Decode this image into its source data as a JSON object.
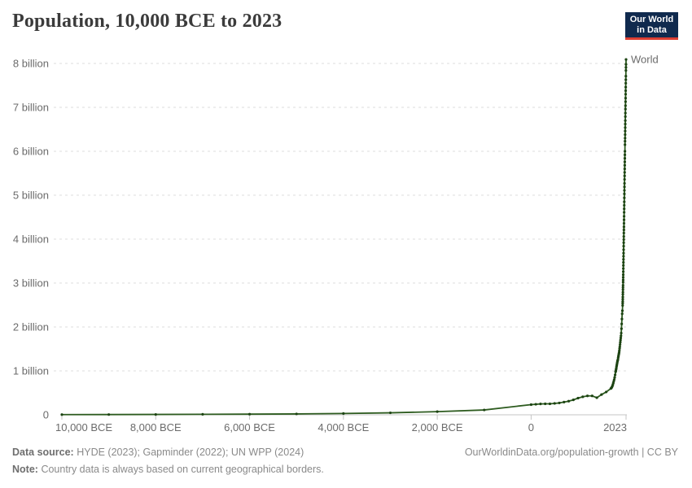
{
  "header": {
    "title": "Population, 10,000 BCE to 2023",
    "logo": {
      "line1": "Our World",
      "line2": "in Data"
    }
  },
  "footer": {
    "data_source_label": "Data source:",
    "data_source_text": "HYDE (2023); Gapminder (2022); UN WPP (2024)",
    "note_label": "Note:",
    "note_text": "Country data is always based on current geographical borders.",
    "credit": "OurWorldinData.org/population-growth | CC BY"
  },
  "colors": {
    "line": "#2e5c20",
    "marker": "#1c4312",
    "series_label": "#1c4312",
    "grid": "#dcdcdc",
    "axis": "#c4c4c4",
    "tick_text": "#6b6b6b",
    "logo_bg": "#102a4e",
    "logo_accent": "#dc3e32",
    "title_text": "#3b3b3b"
  },
  "chart_data": {
    "type": "line",
    "title": "Population, 10,000 BCE to 2023",
    "xlabel": "",
    "ylabel": "",
    "xlim": [
      -10000,
      2023
    ],
    "ylim": [
      0,
      8
    ],
    "grid": "horizontal-dashed",
    "legend_position": "end-of-line",
    "x_ticks": [
      {
        "value": -10000,
        "label": "10,000 BCE"
      },
      {
        "value": -8000,
        "label": "8,000 BCE"
      },
      {
        "value": -6000,
        "label": "6,000 BCE"
      },
      {
        "value": -4000,
        "label": "4,000 BCE"
      },
      {
        "value": -2000,
        "label": "2,000 BCE"
      },
      {
        "value": 0,
        "label": "0"
      },
      {
        "value": 2023,
        "label": "2023"
      }
    ],
    "y_ticks": [
      {
        "value": 0,
        "label": "0"
      },
      {
        "value": 1,
        "label": "1 billion"
      },
      {
        "value": 2,
        "label": "2 billion"
      },
      {
        "value": 3,
        "label": "3 billion"
      },
      {
        "value": 4,
        "label": "4 billion"
      },
      {
        "value": 5,
        "label": "5 billion"
      },
      {
        "value": 6,
        "label": "6 billion"
      },
      {
        "value": 7,
        "label": "7 billion"
      },
      {
        "value": 8,
        "label": "8 billion"
      }
    ],
    "unit": "billion people",
    "series": [
      {
        "name": "World",
        "points": [
          [
            -10000,
            0.004
          ],
          [
            -9000,
            0.006
          ],
          [
            -8000,
            0.008
          ],
          [
            -7000,
            0.011
          ],
          [
            -6000,
            0.015
          ],
          [
            -5000,
            0.02
          ],
          [
            -4000,
            0.03
          ],
          [
            -3000,
            0.045
          ],
          [
            -2000,
            0.072
          ],
          [
            -1000,
            0.11
          ],
          [
            0,
            0.232
          ],
          [
            100,
            0.24
          ],
          [
            200,
            0.248
          ],
          [
            300,
            0.25
          ],
          [
            400,
            0.25
          ],
          [
            500,
            0.26
          ],
          [
            600,
            0.27
          ],
          [
            700,
            0.29
          ],
          [
            800,
            0.31
          ],
          [
            900,
            0.34
          ],
          [
            1000,
            0.38
          ],
          [
            1100,
            0.41
          ],
          [
            1200,
            0.43
          ],
          [
            1300,
            0.43
          ],
          [
            1400,
            0.39
          ],
          [
            1500,
            0.46
          ],
          [
            1600,
            0.52
          ],
          [
            1700,
            0.6
          ],
          [
            1710,
            0.61
          ],
          [
            1720,
            0.63
          ],
          [
            1730,
            0.65
          ],
          [
            1740,
            0.68
          ],
          [
            1750,
            0.72
          ],
          [
            1760,
            0.76
          ],
          [
            1770,
            0.8
          ],
          [
            1780,
            0.85
          ],
          [
            1790,
            0.91
          ],
          [
            1800,
            0.98
          ],
          [
            1805,
            1.0
          ],
          [
            1810,
            1.03
          ],
          [
            1815,
            1.06
          ],
          [
            1820,
            1.1
          ],
          [
            1825,
            1.13
          ],
          [
            1830,
            1.16
          ],
          [
            1835,
            1.19
          ],
          [
            1840,
            1.22
          ],
          [
            1845,
            1.24
          ],
          [
            1850,
            1.26
          ],
          [
            1855,
            1.3
          ],
          [
            1860,
            1.33
          ],
          [
            1865,
            1.36
          ],
          [
            1870,
            1.39
          ],
          [
            1875,
            1.42
          ],
          [
            1880,
            1.46
          ],
          [
            1885,
            1.51
          ],
          [
            1890,
            1.55
          ],
          [
            1895,
            1.6
          ],
          [
            1900,
            1.65
          ],
          [
            1905,
            1.7
          ],
          [
            1910,
            1.75
          ],
          [
            1915,
            1.8
          ],
          [
            1920,
            1.86
          ],
          [
            1925,
            1.96
          ],
          [
            1930,
            2.07
          ],
          [
            1935,
            2.18
          ],
          [
            1940,
            2.3
          ],
          [
            1945,
            2.37
          ],
          [
            1950,
            2.49
          ],
          [
            1951,
            2.54
          ],
          [
            1952,
            2.58
          ],
          [
            1953,
            2.63
          ],
          [
            1954,
            2.68
          ],
          [
            1955,
            2.74
          ],
          [
            1956,
            2.79
          ],
          [
            1957,
            2.85
          ],
          [
            1958,
            2.9
          ],
          [
            1959,
            2.95
          ],
          [
            1960,
            3.02
          ],
          [
            1961,
            3.07
          ],
          [
            1962,
            3.13
          ],
          [
            1963,
            3.19
          ],
          [
            1964,
            3.26
          ],
          [
            1965,
            3.33
          ],
          [
            1966,
            3.4
          ],
          [
            1967,
            3.47
          ],
          [
            1968,
            3.54
          ],
          [
            1969,
            3.61
          ],
          [
            1970,
            3.68
          ],
          [
            1971,
            3.76
          ],
          [
            1972,
            3.84
          ],
          [
            1973,
            3.92
          ],
          [
            1974,
            3.99
          ],
          [
            1975,
            4.06
          ],
          [
            1976,
            4.14
          ],
          [
            1977,
            4.21
          ],
          [
            1978,
            4.28
          ],
          [
            1979,
            4.36
          ],
          [
            1980,
            4.44
          ],
          [
            1981,
            4.52
          ],
          [
            1982,
            4.61
          ],
          [
            1983,
            4.69
          ],
          [
            1984,
            4.77
          ],
          [
            1985,
            4.85
          ],
          [
            1986,
            4.94
          ],
          [
            1987,
            5.03
          ],
          [
            1988,
            5.11
          ],
          [
            1989,
            5.19
          ],
          [
            1990,
            5.27
          ],
          [
            1991,
            5.36
          ],
          [
            1992,
            5.44
          ],
          [
            1993,
            5.52
          ],
          [
            1994,
            5.6
          ],
          [
            1995,
            5.68
          ],
          [
            1996,
            5.76
          ],
          [
            1997,
            5.84
          ],
          [
            1998,
            5.92
          ],
          [
            1999,
            6.0
          ],
          [
            2000,
            6.15
          ],
          [
            2001,
            6.23
          ],
          [
            2002,
            6.3
          ],
          [
            2003,
            6.38
          ],
          [
            2004,
            6.46
          ],
          [
            2005,
            6.54
          ],
          [
            2006,
            6.62
          ],
          [
            2007,
            6.7
          ],
          [
            2008,
            6.79
          ],
          [
            2009,
            6.87
          ],
          [
            2010,
            6.96
          ],
          [
            2011,
            7.04
          ],
          [
            2012,
            7.13
          ],
          [
            2013,
            7.21
          ],
          [
            2014,
            7.3
          ],
          [
            2015,
            7.38
          ],
          [
            2016,
            7.46
          ],
          [
            2017,
            7.55
          ],
          [
            2018,
            7.63
          ],
          [
            2019,
            7.71
          ],
          [
            2020,
            7.84
          ],
          [
            2021,
            7.91
          ],
          [
            2022,
            7.98
          ],
          [
            2023,
            8.09
          ]
        ]
      }
    ]
  }
}
